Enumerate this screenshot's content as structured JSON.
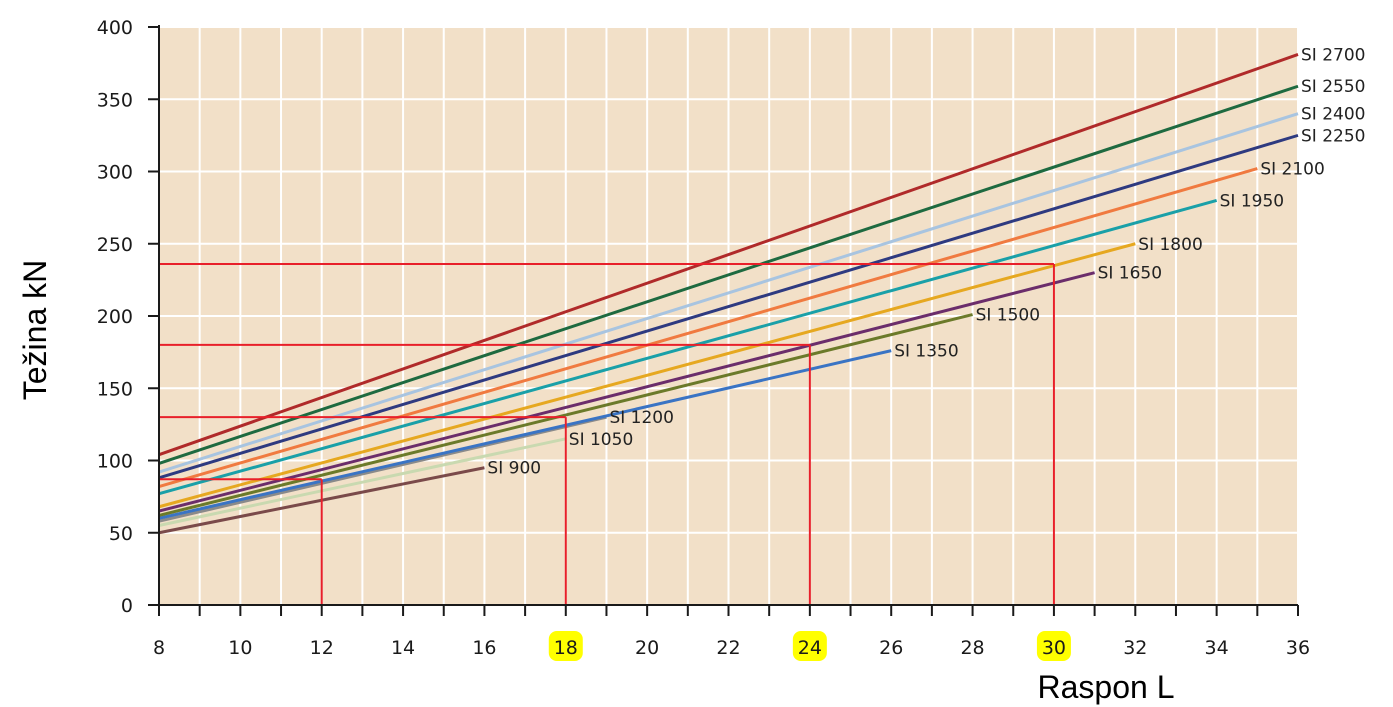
{
  "chart_data": {
    "type": "line",
    "xlabel": "Raspon L",
    "ylabel": "Težina kN",
    "xlim": [
      8,
      36
    ],
    "ylim": [
      0,
      400
    ],
    "x_ticks": [
      8,
      10,
      12,
      14,
      16,
      18,
      20,
      22,
      24,
      26,
      28,
      30,
      32,
      34,
      36
    ],
    "y_ticks": [
      0,
      50,
      100,
      150,
      200,
      250,
      300,
      350,
      400
    ],
    "highlighted_x_ticks": [
      18,
      24,
      30
    ],
    "highlight_color": "#ffff00",
    "plot_background": "#f2e0c8",
    "grid": true,
    "series": [
      {
        "name": "SI 900",
        "color": "#7a4a4a",
        "x": [
          8,
          16
        ],
        "y": [
          50,
          95
        ]
      },
      {
        "name": "SI 1050",
        "color": "#c9d9b0",
        "x": [
          8,
          18
        ],
        "y": [
          55,
          115
        ]
      },
      {
        "name": "SI 1200",
        "color": "#8a8a8a",
        "x": [
          8,
          19
        ],
        "y": [
          58,
          130
        ]
      },
      {
        "name": "SI 1350",
        "color": "#3a74c4",
        "x": [
          8,
          26
        ],
        "y": [
          60,
          176
        ]
      },
      {
        "name": "SI 1500",
        "color": "#6b7a2a",
        "x": [
          8,
          28
        ],
        "y": [
          62,
          201
        ]
      },
      {
        "name": "SI 1650",
        "color": "#6b2d6b",
        "x": [
          8,
          31
        ],
        "y": [
          65,
          230
        ]
      },
      {
        "name": "SI 1800",
        "color": "#e6a820",
        "x": [
          8,
          32
        ],
        "y": [
          68,
          250
        ]
      },
      {
        "name": "SI 1950",
        "color": "#1aa0a8",
        "x": [
          8,
          34
        ],
        "y": [
          77,
          280
        ]
      },
      {
        "name": "SI 2100",
        "color": "#f07a40",
        "x": [
          8,
          35
        ],
        "y": [
          82,
          302
        ]
      },
      {
        "name": "SI 2250",
        "color": "#2e3a80",
        "x": [
          8,
          36
        ],
        "y": [
          88,
          325
        ]
      },
      {
        "name": "SI 2400",
        "color": "#a8c4e0",
        "x": [
          8,
          36
        ],
        "y": [
          92,
          340
        ]
      },
      {
        "name": "SI 2550",
        "color": "#1e6a40",
        "x": [
          8,
          36
        ],
        "y": [
          98,
          359
        ]
      },
      {
        "name": "SI 2700",
        "color": "#b02a2a",
        "x": [
          8,
          36
        ],
        "y": [
          104,
          381
        ]
      }
    ],
    "annotations": [
      {
        "x": 12,
        "y": 87
      },
      {
        "x": 18,
        "y": 130
      },
      {
        "x": 24,
        "y": 180
      },
      {
        "x": 30,
        "y": 236
      }
    ]
  }
}
